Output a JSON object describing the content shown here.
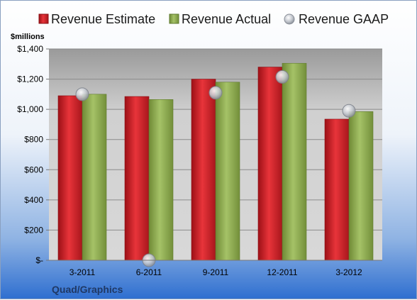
{
  "chart_data": {
    "type": "bar",
    "unit_label": "$millions",
    "footer_label": "Quad/Graphics",
    "categories": [
      "3-2011",
      "6-2011",
      "9-2011",
      "12-2011",
      "3-2012"
    ],
    "series": [
      {
        "name": "Revenue Estimate",
        "kind": "bar",
        "color": "#d8232a",
        "values": [
          1090,
          1085,
          1200,
          1280,
          935
        ]
      },
      {
        "name": "Revenue Actual",
        "kind": "bar",
        "color": "#8fae4f",
        "values": [
          1100,
          1065,
          1180,
          1305,
          985
        ]
      },
      {
        "name": "Revenue GAAP",
        "kind": "marker",
        "color": "#b8bcc4",
        "values": [
          1100,
          0,
          1110,
          1215,
          990
        ]
      }
    ],
    "ylim": [
      0,
      1400
    ],
    "yticks": [
      0,
      200,
      400,
      600,
      800,
      1000,
      1200,
      1400
    ],
    "ytick_labels": [
      "$-",
      "$200",
      "$400",
      "$600",
      "$800",
      "$1,000",
      "$1,200",
      "$1,400"
    ],
    "grid": true,
    "legend_position": "top"
  }
}
